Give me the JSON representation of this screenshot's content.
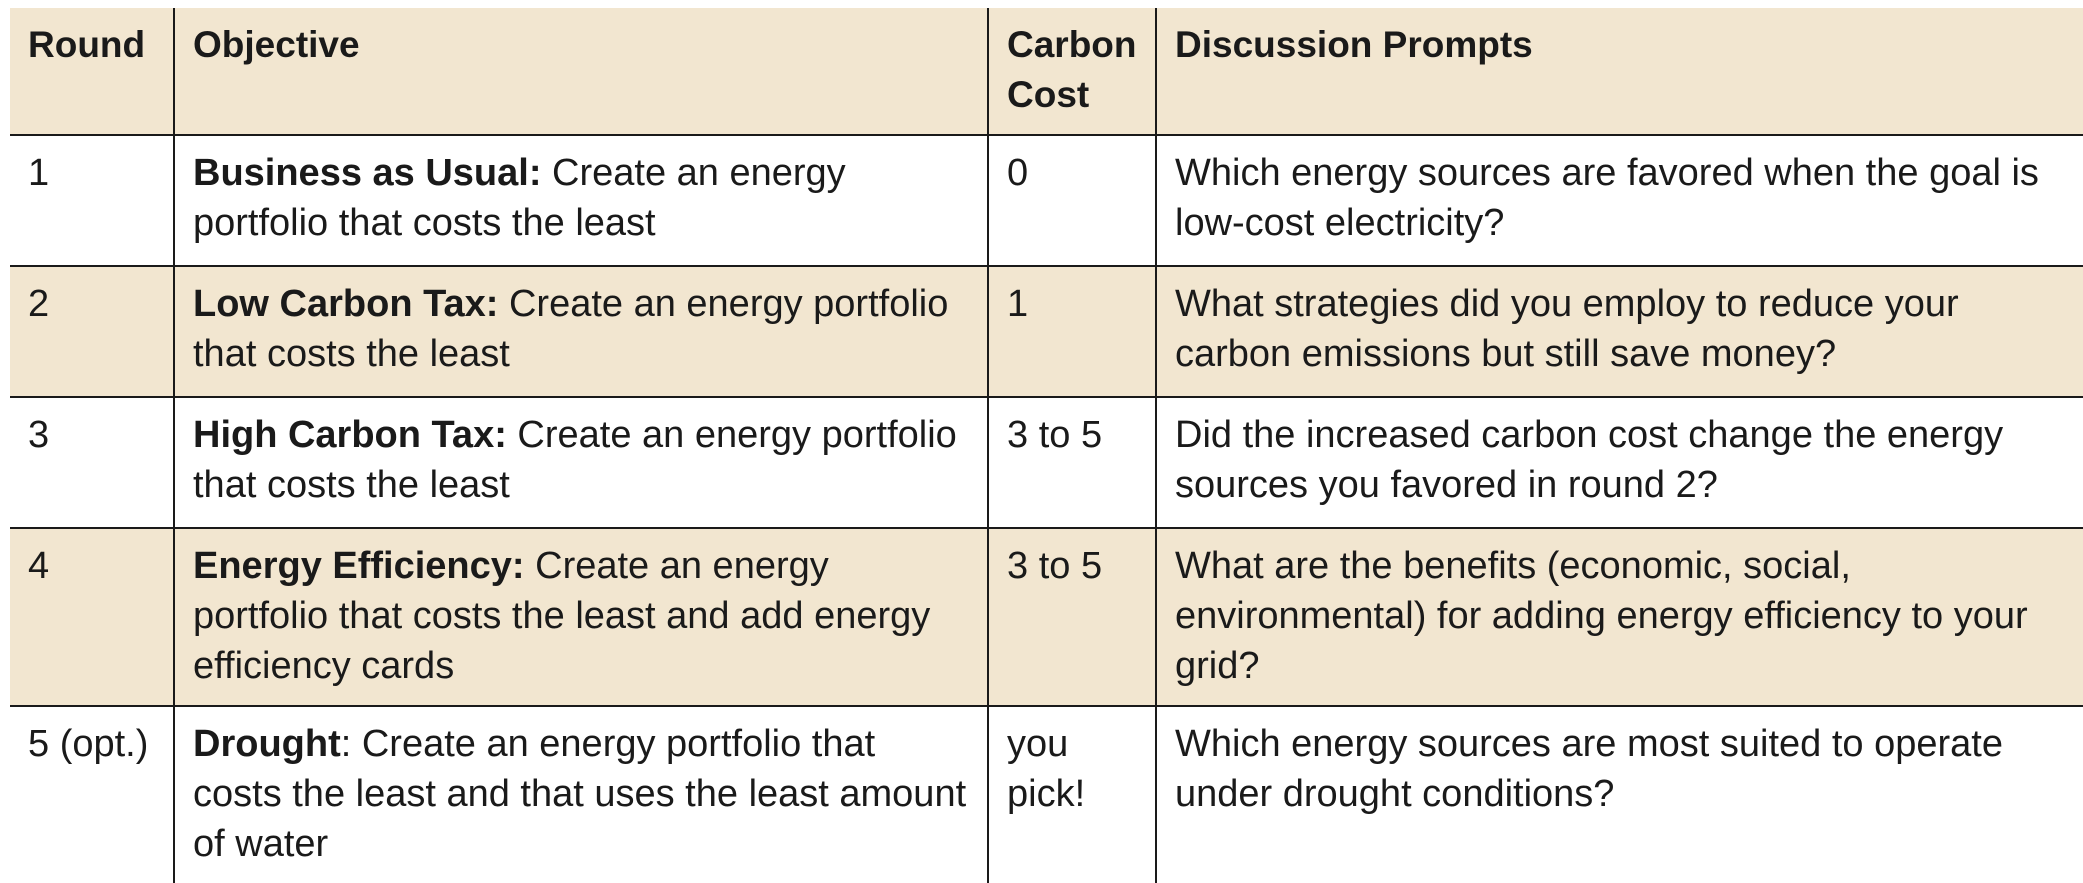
{
  "headers": {
    "round": "Round",
    "objective": "Objective",
    "carbon_cost": "Carbon Cost",
    "discussion": "Discussion Prompts"
  },
  "rows": [
    {
      "round": "1",
      "objective_label": "Business as Usual:",
      "objective_text": " Create an energy portfolio that costs the least",
      "carbon_cost": "0",
      "discussion": "Which energy sources are favored when the goal is low-cost electricity?",
      "shaded": false
    },
    {
      "round": "2",
      "objective_label": "Low Carbon Tax:",
      "objective_text": " Create an energy portfolio that costs the least",
      "carbon_cost": "1",
      "discussion": "What strategies did you employ to reduce your carbon emissions but still save money?",
      "shaded": true
    },
    {
      "round": "3",
      "objective_label": "High Carbon Tax:",
      "objective_text": " Create an energy portfolio that costs the least",
      "carbon_cost": "3 to 5",
      "discussion": "Did the increased carbon cost change the energy sources you favored in round 2?",
      "shaded": false
    },
    {
      "round": "4",
      "objective_label": "Energy Efficiency:",
      "objective_text": " Create an energy portfolio that costs the least and add energy efficiency cards",
      "carbon_cost": "3 to 5",
      "discussion": "What are the benefits (economic, social, environmental) for adding energy efficiency to your grid?",
      "shaded": true
    },
    {
      "round": "5 (opt.)",
      "objective_label": "Drought",
      "objective_text": ": Create an energy portfolio that costs the least and that uses the least amount of water",
      "carbon_cost": "you pick!",
      "discussion": "Which energy sources are most suited to operate under drought conditions?",
      "shaded": false
    }
  ],
  "colors": {
    "shade": "#f2e6d0",
    "rule": "#1a1a1a",
    "text": "#1a1a1a"
  }
}
